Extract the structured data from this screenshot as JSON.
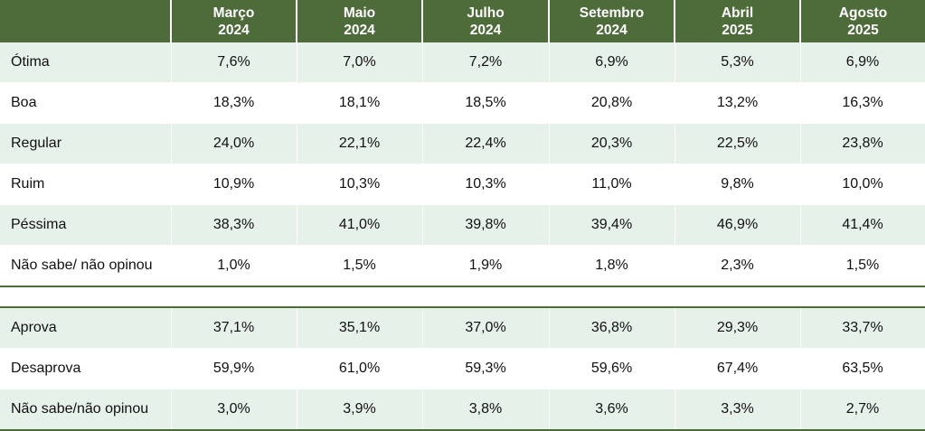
{
  "columns": [
    {
      "line1": "Março",
      "line2": "2024"
    },
    {
      "line1": "Maio",
      "line2": "2024"
    },
    {
      "line1": "Julho",
      "line2": "2024"
    },
    {
      "line1": "Setembro",
      "line2": "2024"
    },
    {
      "line1": "Abril",
      "line2": "2025"
    },
    {
      "line1": "Agosto",
      "line2": "2025"
    }
  ],
  "evaluation_rows": [
    {
      "label": "Ótima",
      "values": [
        "7,6%",
        "7,0%",
        "7,2%",
        "6,9%",
        "5,3%",
        "6,9%"
      ]
    },
    {
      "label": "Boa",
      "values": [
        "18,3%",
        "18,1%",
        "18,5%",
        "20,8%",
        "13,2%",
        "16,3%"
      ]
    },
    {
      "label": "Regular",
      "values": [
        "24,0%",
        "22,1%",
        "22,4%",
        "20,3%",
        "22,5%",
        "23,8%"
      ]
    },
    {
      "label": "Ruim",
      "values": [
        "10,9%",
        "10,3%",
        "10,3%",
        "11,0%",
        "9,8%",
        "10,0%"
      ]
    },
    {
      "label": "Péssima",
      "values": [
        "38,3%",
        "41,0%",
        "39,8%",
        "39,4%",
        "46,9%",
        "41,4%"
      ]
    },
    {
      "label": "Não sabe/ não opinou",
      "values": [
        "1,0%",
        "1,5%",
        "1,9%",
        "1,8%",
        "2,3%",
        "1,5%"
      ]
    }
  ],
  "approval_rows": [
    {
      "label": "Aprova",
      "values": [
        "37,1%",
        "35,1%",
        "37,0%",
        "36,8%",
        "29,3%",
        "33,7%"
      ]
    },
    {
      "label": "Desaprova",
      "values": [
        "59,9%",
        "61,0%",
        "59,3%",
        "59,6%",
        "67,4%",
        "63,5%"
      ]
    },
    {
      "label": "Não sabe/não opinou",
      "values": [
        "3,0%",
        "3,9%",
        "3,8%",
        "3,6%",
        "3,3%",
        "2,7%"
      ]
    }
  ],
  "colors": {
    "header_bg": "#4e6b3a",
    "stripe_bg": "#e6f1ea",
    "header_text": "#ffffff"
  }
}
